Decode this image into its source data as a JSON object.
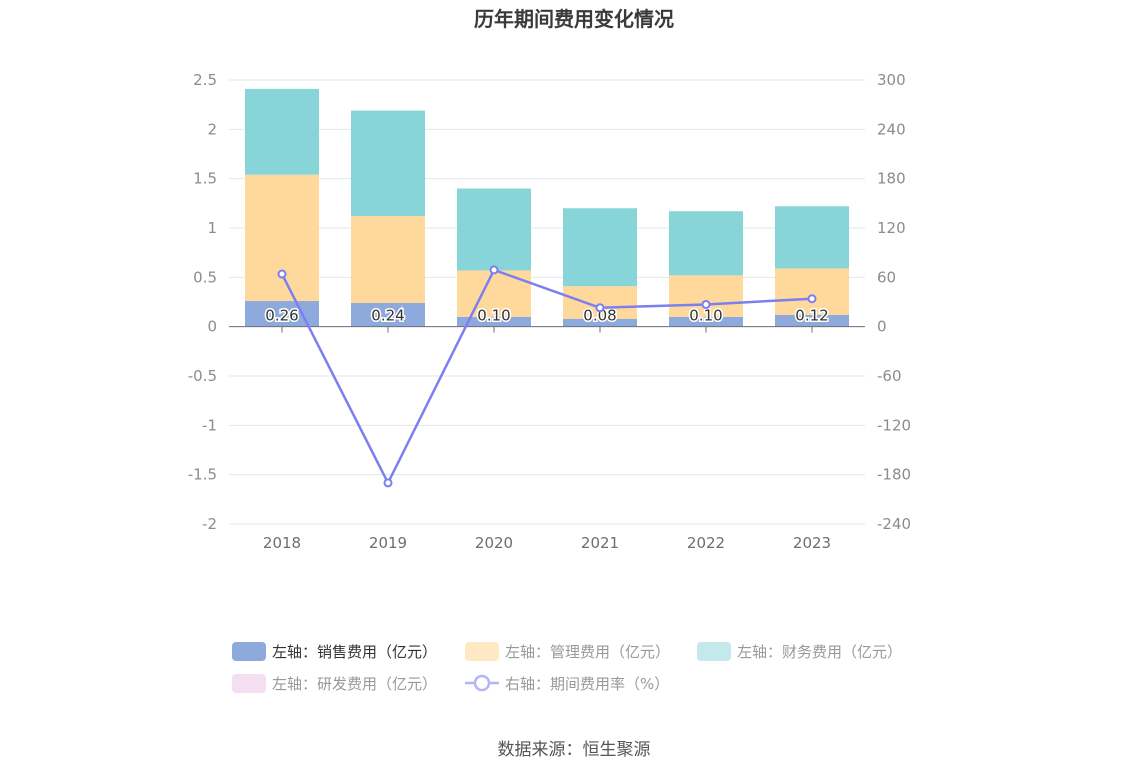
{
  "chart_data": {
    "type": "bar",
    "title": "历年期间费用变化情况",
    "categories": [
      "2018",
      "2019",
      "2020",
      "2021",
      "2022",
      "2023"
    ],
    "left_axis": {
      "ylim": [
        -2,
        2.5
      ],
      "ticks": [
        "2.5",
        "2",
        "1.5",
        "1",
        "0.5",
        "0",
        "-0.5",
        "-1",
        "-1.5",
        "-2"
      ]
    },
    "right_axis": {
      "ylim": [
        -240,
        300
      ],
      "ticks": [
        "300",
        "240",
        "180",
        "120",
        "60",
        "0",
        "-60",
        "-120",
        "-180",
        "-240"
      ]
    },
    "series": [
      {
        "name": "左轴：销售费用（亿元）",
        "type": "bar",
        "axis": "left",
        "color": "#8eaadc",
        "values": [
          0.26,
          0.24,
          0.1,
          0.08,
          0.1,
          0.12
        ],
        "labels": [
          "0.26",
          "0.24",
          "0.10",
          "0.08",
          "0.10",
          "0.12"
        ]
      },
      {
        "name": "左轴：管理费用（亿元）",
        "type": "bar",
        "axis": "left",
        "color": "#ffd99b",
        "values": [
          1.28,
          0.88,
          0.47,
          0.33,
          0.42,
          0.47
        ]
      },
      {
        "name": "左轴：财务费用（亿元）",
        "type": "bar",
        "axis": "left",
        "color": "#87d5d8",
        "values": [
          0.87,
          1.07,
          0.83,
          0.79,
          0.65,
          0.63
        ]
      },
      {
        "name": "左轴：研发费用（亿元）",
        "type": "bar",
        "axis": "left",
        "color": "#f1d9ef",
        "values": [
          0,
          0,
          0,
          0,
          0,
          0
        ]
      },
      {
        "name": "右轴：期间费用率（%）",
        "type": "line",
        "axis": "right",
        "color": "#7b7ff0",
        "values": [
          64,
          -190,
          69,
          23,
          27,
          34
        ]
      }
    ],
    "legend_position": "bottom",
    "grid": true
  },
  "legend": [
    {
      "label": "左轴：销售费用（亿元）",
      "color": "#8eaadc",
      "active": true,
      "kind": "rect"
    },
    {
      "label": "左轴：管理费用（亿元）",
      "color": "#ffe8c4",
      "active": false,
      "kind": "rect"
    },
    {
      "label": "左轴：财务费用（亿元）",
      "color": "#c3e9eb",
      "active": false,
      "kind": "rect"
    },
    {
      "label": "左轴：研发费用（亿元）",
      "color": "#f3dff1",
      "active": false,
      "kind": "rect"
    },
    {
      "label": "右轴：期间费用率（%）",
      "color": "#b3b5f6",
      "active": false,
      "kind": "line"
    }
  ],
  "source": "数据来源：恒生聚源"
}
